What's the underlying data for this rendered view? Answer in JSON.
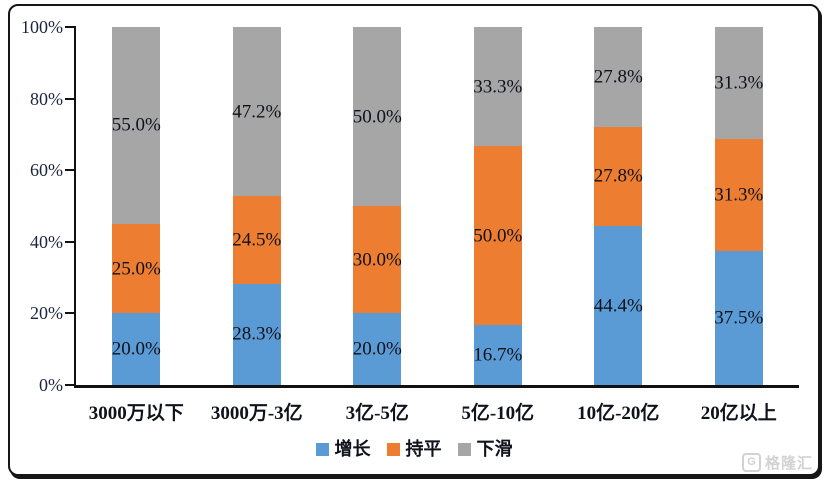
{
  "chart_data": {
    "type": "bar",
    "variant": "stacked-100-percent",
    "title": "",
    "categories": [
      "3000万以下",
      "3000万-3亿",
      "3亿-5亿",
      "5亿-10亿",
      "10亿-20亿",
      "20亿以上"
    ],
    "series": [
      {
        "name": "增长",
        "color": "#5B9BD5",
        "values": [
          20.0,
          28.3,
          20.0,
          16.7,
          44.4,
          37.5
        ],
        "labels": [
          "20.0%",
          "28.3%",
          "20.0%",
          "16.7%",
          "44.4%",
          "37.5%"
        ]
      },
      {
        "name": "持平",
        "color": "#ED7D31",
        "values": [
          25.0,
          24.5,
          30.0,
          50.0,
          27.8,
          31.3
        ],
        "labels": [
          "25.0%",
          "24.5%",
          "30.0%",
          "50.0%",
          "27.8%",
          "31.3%"
        ]
      },
      {
        "name": "下滑",
        "color": "#A6A6A6",
        "values": [
          55.0,
          47.2,
          50.0,
          33.3,
          27.8,
          31.3
        ],
        "labels": [
          "55.0%",
          "47.2%",
          "50.0%",
          "33.3%",
          "27.8%",
          "31.3%"
        ]
      }
    ],
    "y_axis": {
      "ticks": [
        "0%",
        "20%",
        "40%",
        "60%",
        "80%",
        "100%"
      ],
      "min": 0,
      "max": 100
    },
    "xlabel": "",
    "ylabel": "",
    "grid": false,
    "legend_position": "bottom"
  },
  "watermark": {
    "icon_letter": "G",
    "text": "格隆汇"
  },
  "colors": {
    "axis": "#111111",
    "tick_text": "#1c2540",
    "data_label_text": "#10121c",
    "card_border": "#161616"
  }
}
